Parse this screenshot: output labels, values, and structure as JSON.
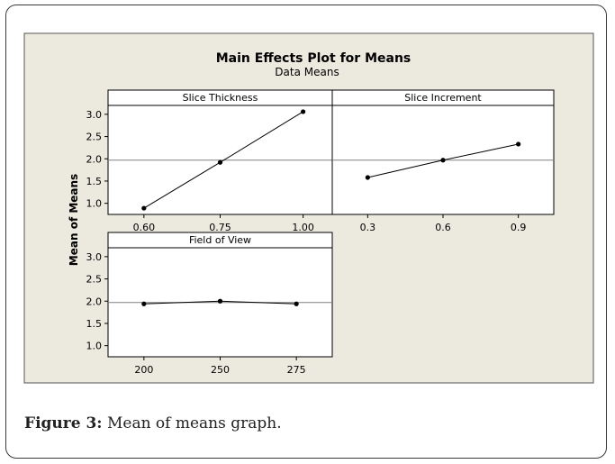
{
  "figure": {
    "caption_label": "Figure 3:",
    "caption_text": " Mean of means graph."
  },
  "chart_data": {
    "type": "line",
    "title": "Main Effects Plot for Means",
    "subtitle": "Data Means",
    "ylabel": "Mean of Means",
    "ylim": [
      0.75,
      3.2
    ],
    "yticks": [
      1.0,
      1.5,
      2.0,
      2.5,
      3.0
    ],
    "ytick_labels": [
      "1.0",
      "1.5",
      "2.0",
      "2.5",
      "3.0"
    ],
    "reference_line": 1.97,
    "grid": false,
    "colors": {
      "background": "#ece9df",
      "plot_bg": "#ffffff",
      "line": "#000000",
      "reference": "#808080"
    },
    "panels": [
      {
        "name": "Slice Thickness",
        "categories": [
          "0.60",
          "0.75",
          "1.00"
        ],
        "values": [
          0.89,
          1.92,
          3.06
        ]
      },
      {
        "name": "Slice Increment",
        "categories": [
          "0.3",
          "0.6",
          "0.9"
        ],
        "values": [
          1.58,
          1.97,
          2.33
        ]
      },
      {
        "name": "Field of View",
        "categories": [
          "200",
          "250",
          "275"
        ],
        "values": [
          1.94,
          2.0,
          1.94
        ]
      }
    ]
  }
}
